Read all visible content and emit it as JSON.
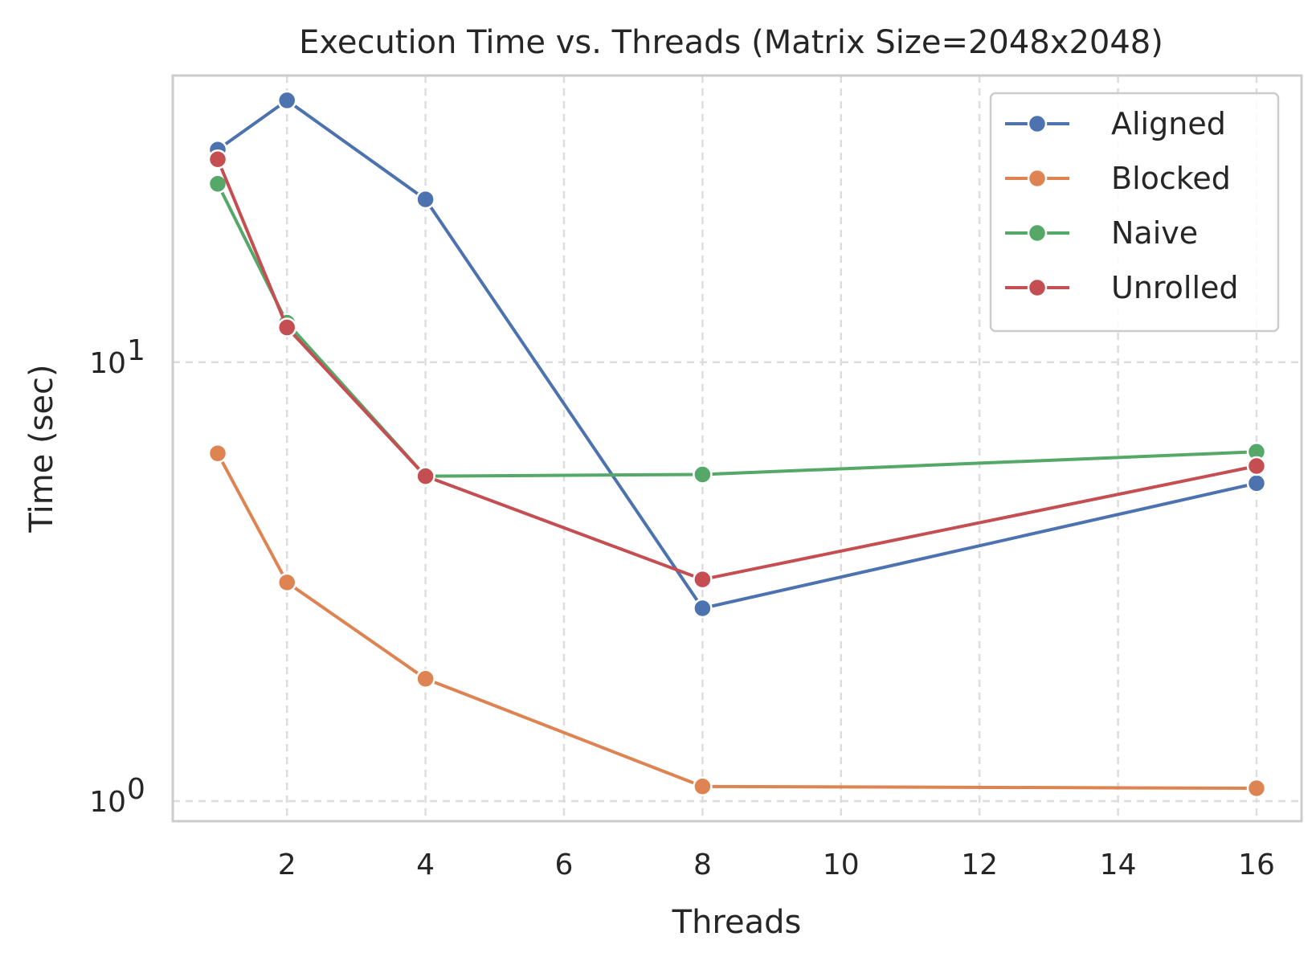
{
  "chart_data": {
    "type": "line",
    "title": "Execution Time vs. Threads (Matrix Size=2048x2048)",
    "xlabel": "Threads",
    "ylabel": "Time (sec)",
    "yscale": "log",
    "xlim": [
      0.35,
      16.65
    ],
    "ylim": [
      0.9,
      45
    ],
    "xticks": [
      2,
      4,
      6,
      8,
      10,
      12,
      14,
      16
    ],
    "xtick_labels": [
      "2",
      "4",
      "6",
      "8",
      "10",
      "12",
      "14",
      "16"
    ],
    "yticks": [
      1,
      10
    ],
    "ytick_labels": [
      {
        "base": "10",
        "exp": "0"
      },
      {
        "base": "10",
        "exp": "1"
      }
    ],
    "grid": true,
    "legend_position": "top-right",
    "x": [
      1,
      2,
      4,
      8,
      16
    ],
    "series": [
      {
        "name": "Aligned",
        "color": "#4c72b0",
        "values": [
          30.5,
          39.5,
          23.5,
          2.75,
          5.3
        ]
      },
      {
        "name": "Blocked",
        "color": "#dd8452",
        "values": [
          6.2,
          3.15,
          1.9,
          1.08,
          1.07
        ]
      },
      {
        "name": "Naive",
        "color": "#55a868",
        "values": [
          25.5,
          12.3,
          5.5,
          5.55,
          6.25
        ]
      },
      {
        "name": "Unrolled",
        "color": "#c44e52",
        "values": [
          29.0,
          12.0,
          5.5,
          3.2,
          5.8
        ]
      }
    ]
  }
}
